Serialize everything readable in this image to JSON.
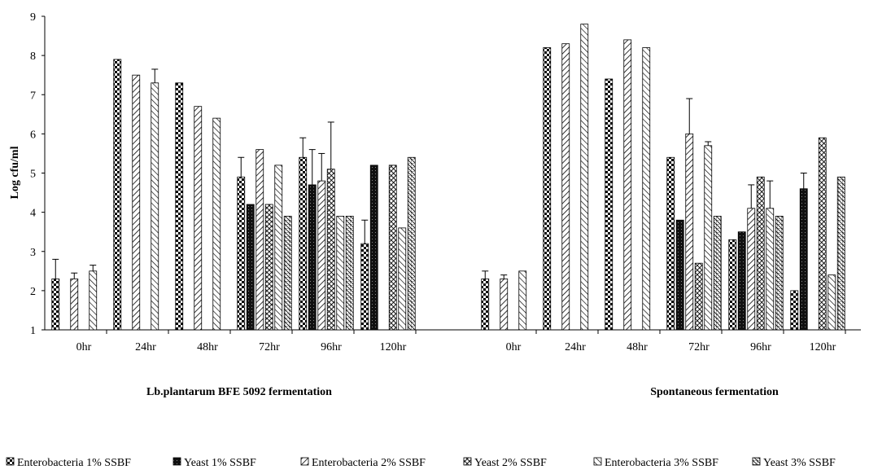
{
  "chart_data": {
    "type": "bar",
    "title": "",
    "ylabel": "Log cfu/ml",
    "ylim": [
      1,
      9
    ],
    "yticks": [
      1,
      2,
      3,
      4,
      5,
      6,
      7,
      8,
      9
    ],
    "grid": false,
    "legend_position": "bottom",
    "groups": [
      {
        "name": "Lb.plantarum BFE 5092 fermentation",
        "categories": [
          "0hr",
          "24hr",
          "48hr",
          "72hr",
          "96hr",
          "120hr"
        ]
      },
      {
        "name": "Spontaneous fermentation",
        "categories": [
          "0hr",
          "24hr",
          "48hr",
          "72hr",
          "96hr",
          "120hr"
        ]
      }
    ],
    "series": [
      {
        "name": "Enterobacteria 1% SSBF",
        "pattern": "checker",
        "values": [
          [
            2.3,
            7.9,
            7.3,
            4.9,
            5.4,
            3.2
          ],
          [
            2.3,
            8.2,
            7.4,
            5.4,
            3.3,
            2.0
          ]
        ],
        "errors": [
          [
            0.5,
            0,
            0,
            0.5,
            0.5,
            0.6
          ],
          [
            0.2,
            0,
            0,
            0,
            0,
            0
          ]
        ]
      },
      {
        "name": "Yeast 1% SSBF",
        "pattern": "dark",
        "values": [
          [
            null,
            null,
            null,
            4.2,
            4.7,
            5.2
          ],
          [
            null,
            null,
            null,
            3.8,
            3.5,
            4.6
          ]
        ],
        "errors": [
          [
            0,
            0,
            0,
            0,
            0.9,
            0
          ],
          [
            0,
            0,
            0,
            0,
            0,
            0.4
          ]
        ]
      },
      {
        "name": "Enterobacteria 2% SSBF",
        "pattern": "diag",
        "values": [
          [
            2.3,
            7.5,
            6.7,
            5.6,
            4.8,
            null
          ],
          [
            2.3,
            8.3,
            8.4,
            6.0,
            4.1,
            null
          ]
        ],
        "errors": [
          [
            0.15,
            0,
            0,
            0,
            0.7,
            0
          ],
          [
            0.1,
            0,
            0,
            0.9,
            0.6,
            0
          ]
        ]
      },
      {
        "name": "Yeast 2% SSBF",
        "pattern": "crosshatch",
        "values": [
          [
            null,
            null,
            null,
            4.2,
            5.1,
            5.2
          ],
          [
            null,
            null,
            null,
            2.7,
            4.9,
            5.9
          ]
        ],
        "errors": [
          [
            0,
            0,
            0,
            0,
            1.2,
            0
          ],
          [
            0,
            0,
            0,
            0,
            0,
            0
          ]
        ]
      },
      {
        "name": "Enterobacteria 3% SSBF",
        "pattern": "diag-rev",
        "values": [
          [
            2.5,
            7.3,
            6.4,
            5.2,
            3.9,
            3.6
          ],
          [
            2.5,
            8.8,
            8.2,
            5.7,
            4.1,
            2.4
          ]
        ],
        "errors": [
          [
            0.15,
            0.35,
            0,
            0,
            0,
            0
          ],
          [
            0,
            0,
            0,
            0.1,
            0.7,
            0
          ]
        ]
      },
      {
        "name": "Yeast 3% SSBF",
        "pattern": "grid",
        "values": [
          [
            null,
            null,
            null,
            3.9,
            3.9,
            5.4
          ],
          [
            null,
            null,
            null,
            3.9,
            3.9,
            4.9
          ]
        ],
        "errors": [
          [
            0,
            0,
            0,
            0,
            0,
            0
          ],
          [
            0,
            0,
            0,
            0,
            0,
            0
          ]
        ]
      }
    ],
    "legend_text": [
      "Enterobacteria 1% SSBF",
      "Yeast 1% SSBF",
      "Enterobacteria 2% SSBF",
      "Yeast 2% SSBF",
      "Enterobacteria 3% SSBF",
      "Yeast 3% SSBF"
    ]
  }
}
